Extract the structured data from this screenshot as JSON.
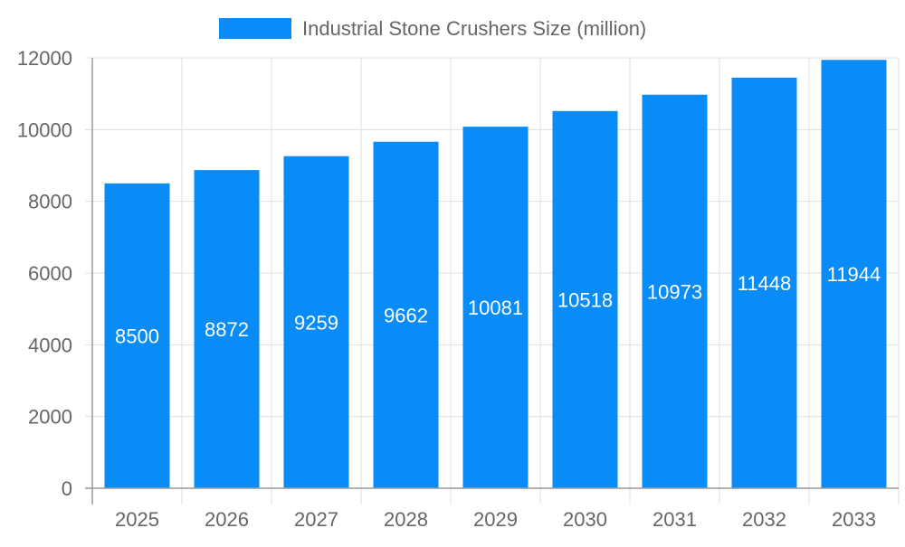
{
  "chart_data": {
    "type": "bar",
    "title": "",
    "xlabel": "",
    "ylabel": "",
    "categories": [
      "2025",
      "2026",
      "2027",
      "2028",
      "2029",
      "2030",
      "2031",
      "2032",
      "2033"
    ],
    "series": [
      {
        "name": "Industrial Stone Crushers Size (million)",
        "values": [
          8500,
          8872,
          9259,
          9662,
          10081,
          10518,
          10973,
          11448,
          11944
        ]
      }
    ],
    "ylim": [
      0,
      12000
    ],
    "yticks": [
      0,
      2000,
      4000,
      6000,
      8000,
      10000,
      12000
    ],
    "grid": true,
    "legend": "top",
    "data_labels": true,
    "colors": {
      "bar": "#0a8cf8",
      "grid": "#e0e0e0",
      "axis": "#999999",
      "tick_text": "#666666",
      "label_text": "#ffffff"
    }
  }
}
